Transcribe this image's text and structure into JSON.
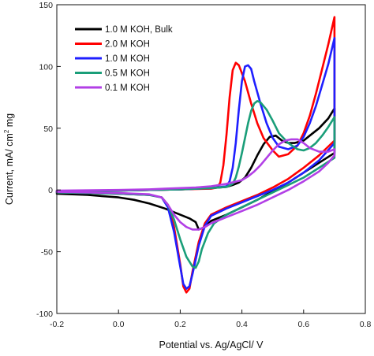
{
  "chart_data": {
    "type": "line",
    "title": "",
    "xlabel": "Potential vs. Ag/AgCl/ V",
    "ylabel_main": "Current, mA/ cm",
    "ylabel_sup": "2",
    "ylabel_tail": " mg",
    "xlim": [
      -0.2,
      0.8
    ],
    "ylim": [
      -100,
      150
    ],
    "x_ticks": [
      -0.2,
      0.0,
      0.2,
      0.4,
      0.6,
      0.8
    ],
    "x_tick_labels": [
      "-0.2",
      "0.0",
      "0.2",
      "0.4",
      "0.6",
      "0.8"
    ],
    "y_ticks": [
      -100,
      -50,
      0,
      50,
      100,
      150
    ],
    "y_tick_labels": [
      "-100",
      "-50",
      "0",
      "50",
      "100",
      "150"
    ],
    "grid": false,
    "legend_position": "top-left",
    "series": [
      {
        "name": "1.0 M KOH, Bulk",
        "color": "#000000",
        "points": [
          [
            -0.2,
            -3
          ],
          [
            -0.1,
            -4
          ],
          [
            0.0,
            -6
          ],
          [
            0.05,
            -8
          ],
          [
            0.1,
            -11
          ],
          [
            0.15,
            -15
          ],
          [
            0.18,
            -18
          ],
          [
            0.2,
            -20
          ],
          [
            0.23,
            -23
          ],
          [
            0.25,
            -26
          ],
          [
            0.26,
            -32
          ],
          [
            0.28,
            -30
          ],
          [
            0.3,
            -25
          ],
          [
            0.35,
            -20
          ],
          [
            0.4,
            -14
          ],
          [
            0.45,
            -8
          ],
          [
            0.5,
            -1
          ],
          [
            0.55,
            6
          ],
          [
            0.6,
            14
          ],
          [
            0.65,
            22
          ],
          [
            0.7,
            30
          ],
          [
            0.7,
            66
          ],
          [
            0.68,
            58
          ],
          [
            0.65,
            50
          ],
          [
            0.62,
            44
          ],
          [
            0.6,
            40
          ],
          [
            0.57,
            38
          ],
          [
            0.55,
            38
          ],
          [
            0.53,
            40
          ],
          [
            0.51,
            44
          ],
          [
            0.49,
            43
          ],
          [
            0.47,
            37
          ],
          [
            0.45,
            28
          ],
          [
            0.43,
            18
          ],
          [
            0.41,
            10
          ],
          [
            0.39,
            6
          ],
          [
            0.37,
            4
          ],
          [
            0.35,
            2.5
          ],
          [
            0.3,
            1.5
          ],
          [
            0.2,
            0.5
          ],
          [
            0.1,
            0
          ],
          [
            0.0,
            -0.5
          ],
          [
            -0.2,
            -1
          ]
        ]
      },
      {
        "name": "2.0 M KOH",
        "color": "#ff0000",
        "points": [
          [
            -0.2,
            -2
          ],
          [
            -0.1,
            -2.5
          ],
          [
            0.0,
            -3
          ],
          [
            0.1,
            -4
          ],
          [
            0.14,
            -6
          ],
          [
            0.16,
            -12
          ],
          [
            0.18,
            -30
          ],
          [
            0.2,
            -60
          ],
          [
            0.21,
            -78
          ],
          [
            0.22,
            -83
          ],
          [
            0.23,
            -80
          ],
          [
            0.24,
            -66
          ],
          [
            0.26,
            -42
          ],
          [
            0.28,
            -27
          ],
          [
            0.3,
            -20
          ],
          [
            0.35,
            -14
          ],
          [
            0.4,
            -9
          ],
          [
            0.45,
            -4
          ],
          [
            0.5,
            2
          ],
          [
            0.55,
            9
          ],
          [
            0.6,
            18
          ],
          [
            0.65,
            28
          ],
          [
            0.7,
            40
          ],
          [
            0.7,
            140
          ],
          [
            0.68,
            118
          ],
          [
            0.66,
            98
          ],
          [
            0.64,
            78
          ],
          [
            0.62,
            60
          ],
          [
            0.6,
            46
          ],
          [
            0.58,
            36
          ],
          [
            0.55,
            29
          ],
          [
            0.52,
            27
          ],
          [
            0.5,
            32
          ],
          [
            0.47,
            42
          ],
          [
            0.45,
            54
          ],
          [
            0.43,
            70
          ],
          [
            0.41,
            88
          ],
          [
            0.39,
            101
          ],
          [
            0.38,
            103
          ],
          [
            0.37,
            97
          ],
          [
            0.36,
            75
          ],
          [
            0.35,
            45
          ],
          [
            0.34,
            20
          ],
          [
            0.33,
            6
          ],
          [
            0.32,
            2
          ],
          [
            0.3,
            1
          ],
          [
            0.2,
            0.5
          ],
          [
            0.1,
            0
          ],
          [
            0.0,
            -0.5
          ],
          [
            -0.2,
            -1
          ]
        ]
      },
      {
        "name": "1.0 M KOH",
        "color": "#1f1fff",
        "points": [
          [
            -0.2,
            -2
          ],
          [
            -0.1,
            -2.5
          ],
          [
            0.0,
            -3
          ],
          [
            0.1,
            -4
          ],
          [
            0.14,
            -6
          ],
          [
            0.16,
            -14
          ],
          [
            0.18,
            -34
          ],
          [
            0.2,
            -62
          ],
          [
            0.21,
            -76
          ],
          [
            0.22,
            -80
          ],
          [
            0.23,
            -78
          ],
          [
            0.24,
            -68
          ],
          [
            0.26,
            -45
          ],
          [
            0.28,
            -29
          ],
          [
            0.3,
            -21
          ],
          [
            0.35,
            -15
          ],
          [
            0.4,
            -10
          ],
          [
            0.45,
            -5
          ],
          [
            0.5,
            0
          ],
          [
            0.55,
            6
          ],
          [
            0.6,
            14
          ],
          [
            0.65,
            24
          ],
          [
            0.7,
            38
          ],
          [
            0.7,
            123
          ],
          [
            0.68,
            102
          ],
          [
            0.66,
            85
          ],
          [
            0.64,
            68
          ],
          [
            0.62,
            54
          ],
          [
            0.6,
            43
          ],
          [
            0.58,
            36
          ],
          [
            0.55,
            33
          ],
          [
            0.52,
            35
          ],
          [
            0.5,
            42
          ],
          [
            0.48,
            54
          ],
          [
            0.46,
            70
          ],
          [
            0.44,
            88
          ],
          [
            0.43,
            98
          ],
          [
            0.42,
            101
          ],
          [
            0.41,
            100
          ],
          [
            0.4,
            88
          ],
          [
            0.39,
            65
          ],
          [
            0.38,
            38
          ],
          [
            0.37,
            18
          ],
          [
            0.36,
            7
          ],
          [
            0.35,
            3
          ],
          [
            0.3,
            1.5
          ],
          [
            0.2,
            0.5
          ],
          [
            0.1,
            0
          ],
          [
            0.0,
            -0.5
          ],
          [
            -0.2,
            -1
          ]
        ]
      },
      {
        "name": "0.5 M KOH",
        "color": "#1a9e79",
        "points": [
          [
            -0.2,
            -2
          ],
          [
            -0.1,
            -2.5
          ],
          [
            0.0,
            -3
          ],
          [
            0.1,
            -4
          ],
          [
            0.14,
            -6
          ],
          [
            0.16,
            -12
          ],
          [
            0.18,
            -24
          ],
          [
            0.2,
            -40
          ],
          [
            0.22,
            -54
          ],
          [
            0.24,
            -62
          ],
          [
            0.25,
            -63
          ],
          [
            0.26,
            -58
          ],
          [
            0.27,
            -48
          ],
          [
            0.29,
            -35
          ],
          [
            0.31,
            -27
          ],
          [
            0.35,
            -20
          ],
          [
            0.4,
            -14
          ],
          [
            0.45,
            -8
          ],
          [
            0.5,
            -2
          ],
          [
            0.55,
            4
          ],
          [
            0.6,
            10
          ],
          [
            0.65,
            18
          ],
          [
            0.7,
            26
          ],
          [
            0.7,
            59
          ],
          [
            0.68,
            51
          ],
          [
            0.66,
            44
          ],
          [
            0.64,
            38
          ],
          [
            0.62,
            34
          ],
          [
            0.6,
            32
          ],
          [
            0.58,
            33
          ],
          [
            0.55,
            38
          ],
          [
            0.52,
            46
          ],
          [
            0.5,
            56
          ],
          [
            0.48,
            65
          ],
          [
            0.46,
            71
          ],
          [
            0.45,
            72
          ],
          [
            0.44,
            70
          ],
          [
            0.43,
            64
          ],
          [
            0.42,
            54
          ],
          [
            0.41,
            42
          ],
          [
            0.4,
            30
          ],
          [
            0.39,
            19
          ],
          [
            0.38,
            10
          ],
          [
            0.37,
            5
          ],
          [
            0.35,
            2.5
          ],
          [
            0.3,
            1.5
          ],
          [
            0.2,
            0.5
          ],
          [
            0.1,
            0
          ],
          [
            0.0,
            -0.5
          ],
          [
            -0.2,
            -1
          ]
        ]
      },
      {
        "name": "0.1 M KOH",
        "color": "#b23fe6",
        "points": [
          [
            -0.2,
            -1.5
          ],
          [
            -0.1,
            -2
          ],
          [
            0.0,
            -2.5
          ],
          [
            0.1,
            -3.5
          ],
          [
            0.14,
            -6
          ],
          [
            0.16,
            -12
          ],
          [
            0.18,
            -20
          ],
          [
            0.2,
            -26
          ],
          [
            0.22,
            -30
          ],
          [
            0.24,
            -32
          ],
          [
            0.26,
            -32
          ],
          [
            0.28,
            -30
          ],
          [
            0.3,
            -27
          ],
          [
            0.35,
            -22
          ],
          [
            0.4,
            -17
          ],
          [
            0.45,
            -12
          ],
          [
            0.5,
            -6
          ],
          [
            0.55,
            0
          ],
          [
            0.6,
            7
          ],
          [
            0.65,
            15
          ],
          [
            0.68,
            22
          ],
          [
            0.7,
            28
          ],
          [
            0.7,
            33
          ],
          [
            0.68,
            31
          ],
          [
            0.65,
            31
          ],
          [
            0.62,
            34
          ],
          [
            0.6,
            38
          ],
          [
            0.58,
            41
          ],
          [
            0.56,
            41
          ],
          [
            0.54,
            40
          ],
          [
            0.52,
            37
          ],
          [
            0.5,
            32
          ],
          [
            0.48,
            26
          ],
          [
            0.46,
            20
          ],
          [
            0.44,
            15
          ],
          [
            0.42,
            11
          ],
          [
            0.4,
            8
          ],
          [
            0.35,
            5
          ],
          [
            0.3,
            3
          ],
          [
            0.25,
            2
          ],
          [
            0.2,
            1.5
          ],
          [
            0.15,
            1
          ],
          [
            0.1,
            0.5
          ],
          [
            0.0,
            0
          ],
          [
            -0.2,
            -0.5
          ]
        ]
      }
    ]
  }
}
